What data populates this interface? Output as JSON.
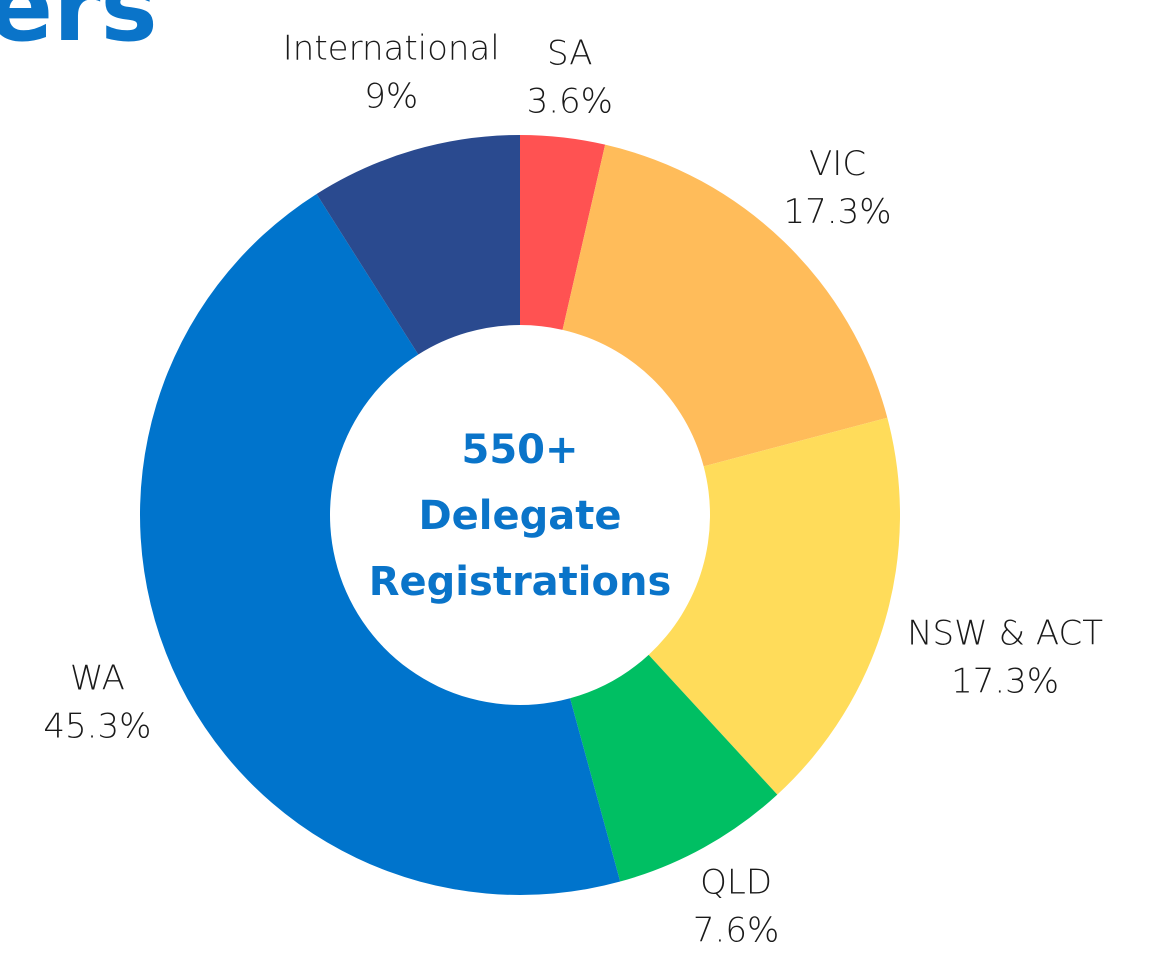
{
  "chart_data": {
    "type": "donut",
    "title": "ers",
    "categories": [
      "SA",
      "VIC",
      "NSW & ACT",
      "QLD",
      "WA",
      "International"
    ],
    "values": [
      3.6,
      17.3,
      17.3,
      7.6,
      45.3,
      9
    ],
    "value_labels": [
      "3.6%",
      "17.3%",
      "17.3%",
      "7.6%",
      "45.3%",
      "9%"
    ],
    "colors": [
      "#ff5252",
      "#ffbc5a",
      "#ffdc5a",
      "#00bf63",
      "#0074cc",
      "#2a4a8f"
    ],
    "center_text": [
      "550+",
      "Delegate",
      "Registrations"
    ]
  }
}
